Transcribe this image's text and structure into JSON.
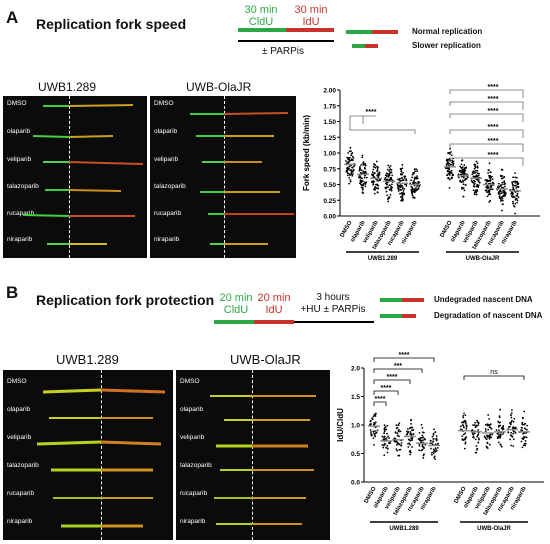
{
  "panel_a": {
    "letter": "A",
    "title": "Replication fork speed",
    "scheme": {
      "green_label": "30 min\nCldU",
      "red_label": "30 min\nIdU",
      "treatment": "± PARPis"
    },
    "legend": {
      "normal": "Normal replication",
      "slower": "Slower replication"
    },
    "cell_lines": [
      "UWB1.289",
      "UWB-OlaJR"
    ],
    "image_labels": [
      "DMSO",
      "olaparib",
      "veliparib",
      "talazoparib",
      "rucaparib",
      "niraparib"
    ]
  },
  "panel_b": {
    "letter": "B",
    "title": "Replication fork protection",
    "scheme": {
      "green_label": "20 min\nCldU",
      "red_label": "20 min\nIdU",
      "hu_label": "3 hours\n+HU ± PARPis"
    },
    "legend": {
      "undegraded": "Undegraded nascent DNA",
      "degradation": "Degradation of nascent DNA"
    },
    "cell_lines": [
      "UWB1.289",
      "UWB-OlaJR"
    ],
    "image_labels": [
      "DMSO",
      "olaparib",
      "veliparib",
      "talazoparib",
      "rucaparib",
      "niraparib"
    ]
  },
  "colors": {
    "green": "#2aa845",
    "red": "#c8322a",
    "bracket": "#6a6a6a"
  },
  "chart_data": [
    {
      "type": "scatter",
      "ylabel": "Fork speed (kb/min)",
      "ylim": [
        0,
        2.0
      ],
      "yticks": [
        "0.00",
        "0.25",
        "0.50",
        "0.75",
        "1.00",
        "1.25",
        "1.50",
        "1.75",
        "2.00"
      ],
      "categories": [
        "DMSO",
        "olaparib",
        "veliparib",
        "talazoparib",
        "rucaparib",
        "niraparib",
        "DMSO",
        "olaparib",
        "veliparib",
        "talazoparib",
        "rucaparib",
        "niraparib"
      ],
      "groups": [
        "UWB1.289",
        "UWB-OlaJR"
      ],
      "medians": [
        0.82,
        0.66,
        0.6,
        0.55,
        0.52,
        0.5,
        0.78,
        0.64,
        0.6,
        0.5,
        0.43,
        0.4
      ],
      "significance": [
        "****",
        "****",
        "****",
        "****",
        "****",
        "****",
        "****"
      ]
    },
    {
      "type": "scatter",
      "ylabel": "IdU/CldU",
      "ylim": [
        0,
        2.0
      ],
      "yticks": [
        "0.0",
        "0.5",
        "1.0",
        "1.5",
        "2.0"
      ],
      "categories": [
        "DMSO",
        "olaparib",
        "veliparib",
        "talazoparib",
        "rucaparib",
        "niraparib",
        "DMSO",
        "olaparib",
        "veliparib",
        "talazoparib",
        "rucaparib",
        "niraparib"
      ],
      "groups": [
        "UWB1.289",
        "UWB-OlaJR"
      ],
      "medians": [
        0.98,
        0.72,
        0.74,
        0.8,
        0.68,
        0.64,
        0.9,
        0.88,
        0.86,
        0.88,
        0.92,
        0.88
      ],
      "significance": [
        "****",
        "***",
        "****",
        "****",
        "****",
        "ns"
      ]
    }
  ]
}
